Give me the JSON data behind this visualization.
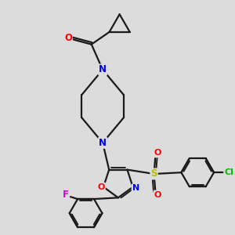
{
  "bg_color": "#dcdcdc",
  "bond_color": "#1a1a1a",
  "bond_width": 1.6,
  "atom_colors": {
    "O": "#ff0000",
    "N": "#0000ee",
    "F": "#dd00dd",
    "Cl": "#00bb00",
    "S": "#bbbb00",
    "C": "#1a1a1a"
  },
  "font_size": 8.5,
  "fig_size": [
    3.0,
    3.0
  ],
  "dpi": 100
}
